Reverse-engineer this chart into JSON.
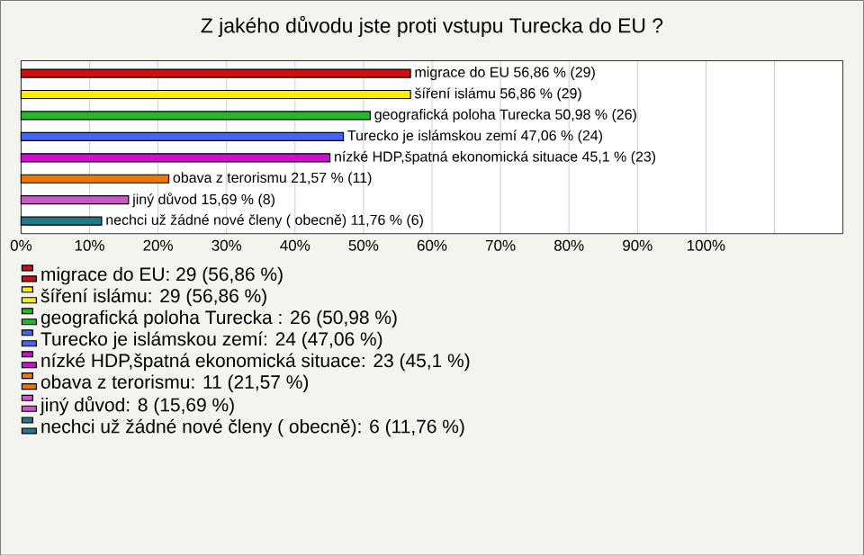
{
  "chart_data": {
    "type": "bar",
    "orientation": "horizontal",
    "title": "Z jakého důvodu jste proti vstupu Turecka do EU ?",
    "categories": [
      null,
      null,
      null,
      null,
      null,
      null,
      null,
      null
    ],
    "series": [
      {
        "name": "migrace do EU: 29 (56,86 %)",
        "color": "#cc1111",
        "values": [
          56.86,
          null,
          null,
          null,
          null,
          null,
          null,
          null
        ],
        "value_labels": [
          "migrace do EU 56,86 % (29)",
          null,
          null,
          null,
          null,
          null,
          null,
          null
        ]
      },
      {
        "name": "šíření islámu: 29 (56,86 %)",
        "color": "#ffee00",
        "values": [
          null,
          56.86,
          null,
          null,
          null,
          null,
          null,
          null
        ],
        "value_labels": [
          null,
          "šíření islámu 56,86 % (29)",
          null,
          null,
          null,
          null,
          null,
          null
        ]
      },
      {
        "name": "geografická poloha Turecka : 26 (50,98 %)",
        "color": "#22bb22",
        "values": [
          null,
          null,
          50.98,
          null,
          null,
          null,
          null,
          null
        ],
        "value_labels": [
          null,
          null,
          "geografická poloha Turecka  50,98 % (26)",
          null,
          null,
          null,
          null,
          null
        ]
      },
      {
        "name": "Turecko je islámskou zemí: 24 (47,06 %)",
        "color": "#4466ee",
        "values": [
          null,
          null,
          null,
          47.06,
          null,
          null,
          null,
          null
        ],
        "value_labels": [
          null,
          null,
          null,
          "Turecko je islámskou zemí 47,06 % (24)",
          null,
          null,
          null,
          null
        ]
      },
      {
        "name": "nízké HDP,špatná ekonomická situace: 23 (45,1 %)",
        "color": "#cc11cc",
        "values": [
          null,
          null,
          null,
          null,
          45.1,
          null,
          null,
          null
        ],
        "value_labels": [
          null,
          null,
          null,
          null,
          "nízké HDP,špatná ekonomická situace 45,1 % (23)",
          null,
          null,
          null
        ]
      },
      {
        "name": "obava z terorismu: 11 (21,57 %)",
        "color": "#ee7700",
        "values": [
          null,
          null,
          null,
          null,
          null,
          21.57,
          null,
          null
        ],
        "value_labels": [
          null,
          null,
          null,
          null,
          null,
          "obava z terorismu 21,57 % (11)",
          null,
          null
        ]
      },
      {
        "name": "jiný důvod: 8 (15,69 %)",
        "color": "#cc55cc",
        "values": [
          null,
          null,
          null,
          null,
          null,
          null,
          15.69,
          null
        ],
        "value_labels": [
          null,
          null,
          null,
          null,
          null,
          null,
          "jiný důvod 15,69 % (8)",
          null
        ]
      },
      {
        "name": "nechci už žádné nové členy ( obecně): 6 (11,76 %)",
        "color": "#227788",
        "values": [
          null,
          null,
          null,
          null,
          null,
          null,
          null,
          11.76
        ],
        "value_labels": [
          null,
          null,
          null,
          null,
          null,
          null,
          null,
          "nechci už žádné nové členy ( obecně) 11,76 % (6)"
        ]
      }
    ],
    "xlim": [
      0,
      120
    ],
    "xticks": [
      {
        "value": 0,
        "label": "0%"
      },
      {
        "value": 10,
        "label": "10%"
      },
      {
        "value": 20,
        "label": "20%"
      },
      {
        "value": 30,
        "label": "30%"
      },
      {
        "value": 40,
        "label": "40%"
      },
      {
        "value": 50,
        "label": "50%"
      },
      {
        "value": 60,
        "label": "60%"
      },
      {
        "value": 70,
        "label": "70%"
      },
      {
        "value": 80,
        "label": "80%"
      },
      {
        "value": 90,
        "label": "90%"
      },
      {
        "value": 100,
        "label": "100%"
      },
      {
        "value": 110,
        "label": null
      }
    ],
    "grid": "x",
    "legend": "bottom"
  }
}
